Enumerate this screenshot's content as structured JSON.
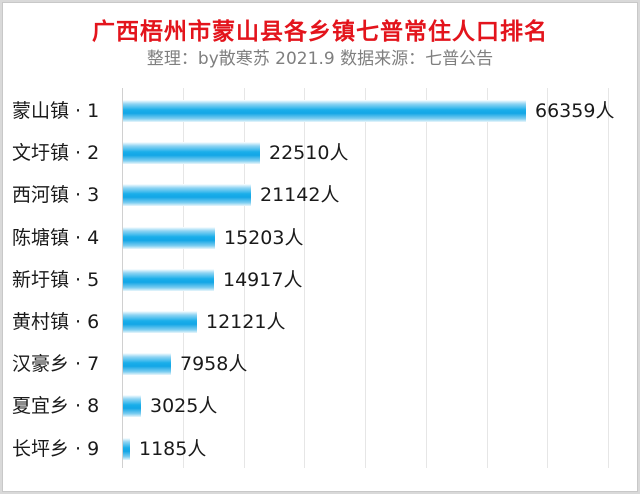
{
  "title": "广西梧州市蒙山县各乡镇七普常住人口排名",
  "subtitle": "整理：by散寒苏 2021.9 数据来源：七普公告",
  "unit": "人",
  "colors": {
    "title": "#e3141c",
    "bar": "#12a6e6",
    "subtitle": "#7f7f7f"
  },
  "chart_data": {
    "type": "bar",
    "orientation": "horizontal",
    "title": "广西梧州市蒙山县各乡镇七普常住人口排名",
    "subtitle": "整理：by散寒苏 2021.9 数据来源：七普公告",
    "categories": [
      "蒙山镇 · 1",
      "文圩镇 · 2",
      "西河镇 · 3",
      "陈塘镇 · 4",
      "新圩镇 · 5",
      "黄村镇 · 6",
      "汉豪乡 · 7",
      "夏宜乡 · 8",
      "长坪乡 · 9"
    ],
    "values": [
      66359,
      22510,
      21142,
      15203,
      14917,
      12121,
      7958,
      3025,
      1185
    ],
    "value_labels": [
      "66359人",
      "22510人",
      "21142人",
      "15203人",
      "14917人",
      "12121人",
      "7958人",
      "3025人",
      "1185人"
    ],
    "xlabel": "",
    "ylabel": "",
    "xlim": [
      0,
      80000
    ],
    "grid": true,
    "legend": "none"
  }
}
